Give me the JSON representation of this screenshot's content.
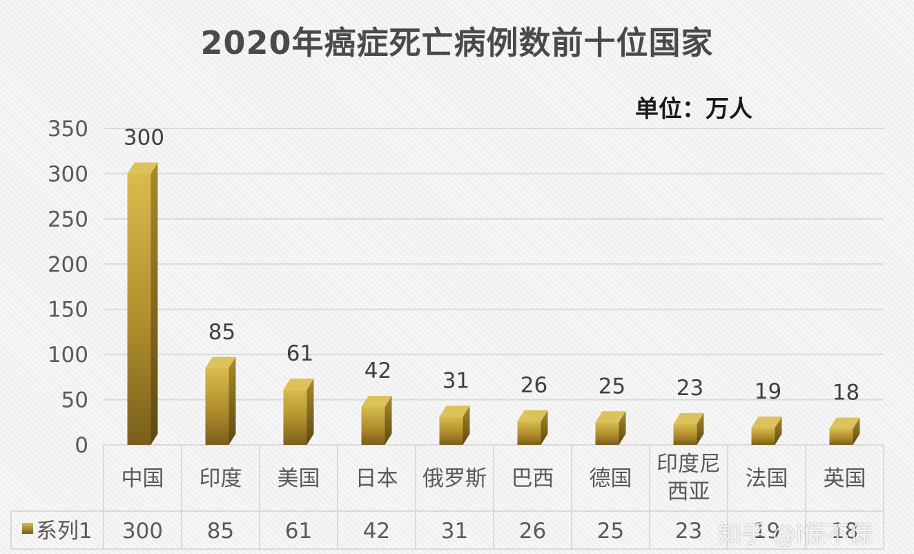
{
  "title": "2020年癌症死亡病例数前十位国家",
  "unit": "单位：万人",
  "watermark": "知乎 @i保不保",
  "colors": {
    "bar_light": "#d6b64a",
    "bar_mid": "#b8962e",
    "bar_dark": "#7a5f1e",
    "grid": "#d9d9d9",
    "axis_text": "#595959"
  },
  "chart_data": {
    "type": "bar",
    "title": "2020年癌症死亡病例数前十位国家",
    "categories": [
      "中国",
      "印度",
      "美国",
      "日本",
      "俄罗斯",
      "巴西",
      "德国",
      "印度尼西亚",
      "法国",
      "英国"
    ],
    "series": [
      {
        "name": "系列1",
        "values": [
          300,
          85,
          61,
          42,
          31,
          26,
          25,
          23,
          19,
          18
        ]
      }
    ],
    "ylim": [
      0,
      350
    ],
    "yticks": [
      0,
      50,
      100,
      150,
      200,
      250,
      300,
      350
    ],
    "grid": true,
    "data_labels": true,
    "data_table": true,
    "legend": "data-table-left"
  }
}
